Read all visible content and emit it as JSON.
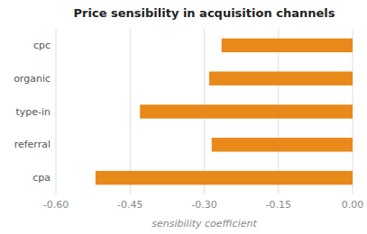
{
  "chart_data": {
    "type": "bar",
    "orientation": "horizontal",
    "title": "Price sensibility in acquisition channels",
    "categories": [
      "cpa",
      "referral",
      "type-in",
      "organic",
      "cpc"
    ],
    "values": [
      -0.52,
      -0.285,
      -0.43,
      -0.29,
      -0.265
    ],
    "color": "#E8891A",
    "xlabel": "sensibility coefficient",
    "xlim": [
      -0.6,
      0.0
    ],
    "xticks": [
      {
        "value": -0.6,
        "label": "-0.60"
      },
      {
        "value": -0.45,
        "label": "-0.45"
      },
      {
        "value": -0.3,
        "label": "-0.30"
      },
      {
        "value": -0.15,
        "label": "-0.15"
      },
      {
        "value": 0.0,
        "label": "0.00"
      }
    ],
    "grid": true
  }
}
